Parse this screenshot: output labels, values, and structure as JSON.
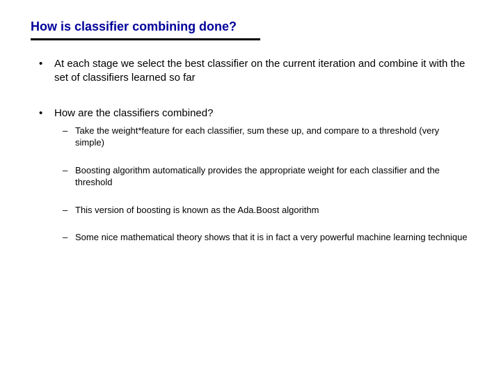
{
  "colors": {
    "title": "#000099",
    "text": "#000000",
    "rule": "#000000",
    "background": "#ffffff"
  },
  "typography": {
    "family": "Verdana",
    "title_size_pt": 18,
    "body_size_pt": 15,
    "sub_size_pt": 13
  },
  "title": "How is classifier combining done?",
  "bullets": [
    {
      "text": "At each stage we select the best classifier on the current iteration and combine it with the set of classifiers learned so far",
      "children": []
    },
    {
      "text": "How are the classifiers combined?",
      "children": [
        "Take the weight*feature for each classifier, sum these up, and compare to a threshold (very simple)",
        "Boosting algorithm automatically provides the appropriate weight for each classifier and the threshold",
        "This version of boosting is known as the Ada.Boost algorithm",
        "Some nice mathematical theory shows that it is in fact a very powerful machine learning technique"
      ]
    }
  ]
}
